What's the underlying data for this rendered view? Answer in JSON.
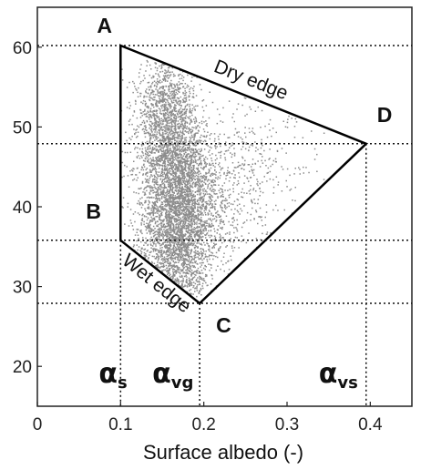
{
  "chart_data": {
    "type": "scatter",
    "xlabel": "Surface albedo (-)",
    "ylabel": "",
    "xlim": [
      0,
      0.45
    ],
    "ylim": [
      15,
      65
    ],
    "x_ticks": [
      "0",
      "0.1",
      "0.2",
      "0.3",
      "0.4"
    ],
    "y_ticks": [
      "20",
      "30",
      "40",
      "50",
      "60"
    ],
    "point_color": "#8c8c8c",
    "polygon": {
      "vertices": [
        {
          "label": "A",
          "x": 0.1,
          "y": 60.2
        },
        {
          "label": "D",
          "x": 0.395,
          "y": 47.9
        },
        {
          "label": "C",
          "x": 0.195,
          "y": 27.9
        },
        {
          "label": "B",
          "x": 0.1,
          "y": 35.8
        }
      ]
    },
    "edge_labels": {
      "dry": "Dry edge",
      "wet": "Wet edge"
    },
    "albedo_markers": [
      {
        "symbol": "α",
        "sub": "s",
        "x": 0.1
      },
      {
        "symbol": "α",
        "sub": "vg",
        "x": 0.195
      },
      {
        "symbol": "α",
        "sub": "vs",
        "x": 0.395
      }
    ],
    "point_clusters": [
      {
        "cx": 0.17,
        "cy": 39,
        "sx": 0.022,
        "sy": 4.5,
        "n": 2600
      },
      {
        "cx": 0.155,
        "cy": 52,
        "sx": 0.018,
        "sy": 3.2,
        "n": 1100
      },
      {
        "cx": 0.16,
        "cy": 46,
        "sx": 0.02,
        "sy": 3.0,
        "n": 900
      },
      {
        "cx": 0.2,
        "cy": 41,
        "sx": 0.04,
        "sy": 5.5,
        "n": 700
      },
      {
        "cx": 0.26,
        "cy": 46,
        "sx": 0.04,
        "sy": 4.0,
        "n": 220
      },
      {
        "cx": 0.165,
        "cy": 32,
        "sx": 0.02,
        "sy": 2.5,
        "n": 400
      }
    ]
  }
}
